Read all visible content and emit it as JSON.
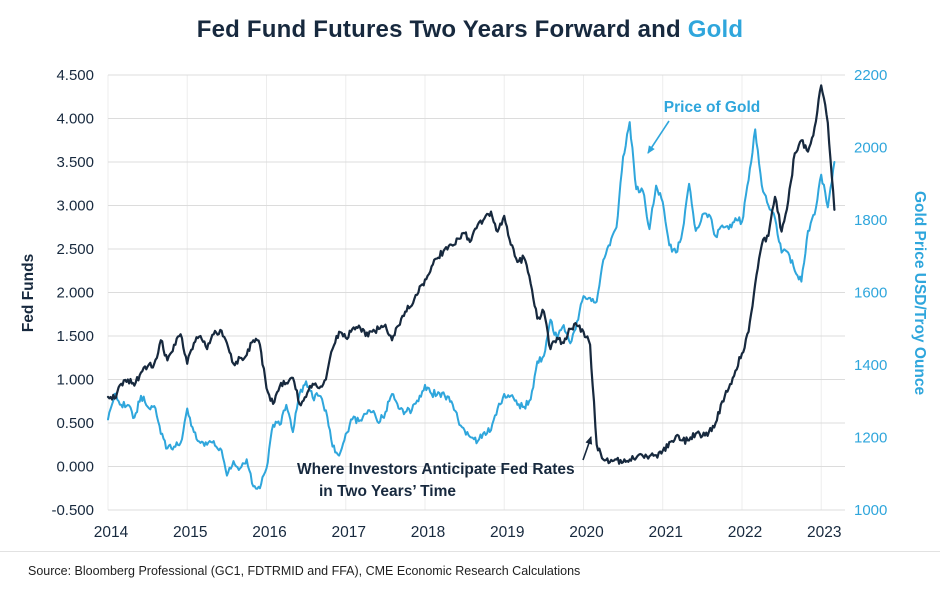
{
  "colors": {
    "navy": "#17293E",
    "blue": "#2FA6DC",
    "gridline": "#DCDCDC",
    "background": "#FFFFFF"
  },
  "header": {
    "title_main": "Fed Fund Futures Two Years Forward and ",
    "title_highlight": "Gold"
  },
  "footer": {
    "source": "Source: Bloomberg Professional (GC1, FDTRMID and FFA), CME Economic Research Calculations"
  },
  "chart_data": {
    "type": "line",
    "title": "Fed Fund Futures Two Years Forward and Gold",
    "grid": true,
    "legend": "none",
    "x_range": [
      2014,
      2023.3
    ],
    "x_ticks": [
      "2014",
      "2015",
      "2016",
      "2017",
      "2018",
      "2019",
      "2020",
      "2021",
      "2022",
      "2023"
    ],
    "left_axis": {
      "label": "Fed Funds",
      "range": [
        -0.5,
        4.5
      ],
      "ticks": [
        "4.500",
        "4.000",
        "3.500",
        "3.000",
        "2.500",
        "2.000",
        "1.500",
        "1.000",
        "0.500",
        "0.000",
        "-0.500"
      ],
      "color": "#17293E"
    },
    "right_axis": {
      "label": "Gold Price USD/Troy Ounce",
      "range": [
        1000,
        2200
      ],
      "ticks": [
        "2200",
        "2000",
        "1800",
        "1600",
        "1400",
        "1200",
        "1000"
      ],
      "color": "#2FA6DC"
    },
    "series": [
      {
        "name": "Price of Gold",
        "data_name": "gold-price-line",
        "axis": "right",
        "color": "#2FA6DC",
        "x_start": 2014.0,
        "x_step": 0.0833333,
        "values": [
          1250,
          1320,
          1290,
          1290,
          1255,
          1315,
          1285,
          1287,
          1210,
          1170,
          1175,
          1185,
          1280,
          1215,
          1185,
          1180,
          1190,
          1170,
          1095,
          1135,
          1115,
          1140,
          1065,
          1060,
          1115,
          1235,
          1235,
          1290,
          1215,
          1320,
          1355,
          1310,
          1315,
          1275,
          1175,
          1150,
          1210,
          1250,
          1245,
          1265,
          1270,
          1240,
          1270,
          1320,
          1280,
          1270,
          1275,
          1300,
          1345,
          1320,
          1325,
          1315,
          1300,
          1250,
          1220,
          1200,
          1190,
          1215,
          1220,
          1280,
          1320,
          1315,
          1290,
          1285,
          1305,
          1410,
          1425,
          1525,
          1470,
          1510,
          1460,
          1520,
          1590,
          1585,
          1575,
          1690,
          1730,
          1780,
          1975,
          2070,
          1885,
          1880,
          1775,
          1895,
          1850,
          1730,
          1710,
          1770,
          1900,
          1770,
          1815,
          1815,
          1755,
          1785,
          1775,
          1805,
          1795,
          1910,
          2050,
          1895,
          1840,
          1805,
          1710,
          1710,
          1660,
          1630,
          1770,
          1815,
          1925,
          1835,
          1960
        ]
      },
      {
        "name": "Fed Fund Futures Two Years Forward",
        "data_name": "fed-funds-line",
        "axis": "left",
        "color": "#17293E",
        "x_start": 2014.0,
        "x_step": 0.0833333,
        "values": [
          0.8,
          0.78,
          0.95,
          1.0,
          0.93,
          1.08,
          1.15,
          1.18,
          1.45,
          1.22,
          1.4,
          1.52,
          1.18,
          1.42,
          1.5,
          1.35,
          1.52,
          1.57,
          1.42,
          1.18,
          1.25,
          1.28,
          1.45,
          1.4,
          0.9,
          0.72,
          0.92,
          0.96,
          1.02,
          0.72,
          0.8,
          0.95,
          0.9,
          1.0,
          1.35,
          1.55,
          1.48,
          1.58,
          1.62,
          1.5,
          1.55,
          1.58,
          1.63,
          1.45,
          1.62,
          1.78,
          1.85,
          2.0,
          2.15,
          2.3,
          2.4,
          2.5,
          2.55,
          2.62,
          2.68,
          2.6,
          2.78,
          2.85,
          2.93,
          2.7,
          2.88,
          2.55,
          2.35,
          2.4,
          2.1,
          1.7,
          1.78,
          1.35,
          1.48,
          1.42,
          1.58,
          1.62,
          1.55,
          1.4,
          0.25,
          0.08,
          0.05,
          0.08,
          0.05,
          0.08,
          0.1,
          0.12,
          0.12,
          0.13,
          0.18,
          0.28,
          0.35,
          0.3,
          0.3,
          0.38,
          0.35,
          0.4,
          0.5,
          0.75,
          0.9,
          1.1,
          1.3,
          1.55,
          2.1,
          2.55,
          2.65,
          3.1,
          2.7,
          3.05,
          3.6,
          3.75,
          3.62,
          3.9,
          4.38,
          3.95,
          2.95
        ]
      }
    ],
    "annotations": [
      {
        "id": "price-of-gold",
        "lines": [
          "Price of Gold"
        ],
        "color": "#2FA6DC"
      },
      {
        "id": "fed-anticipation",
        "lines": [
          "Where Investors Anticipate Fed Rates",
          "in Two Years’ Time"
        ],
        "color": "#17293E"
      }
    ]
  }
}
